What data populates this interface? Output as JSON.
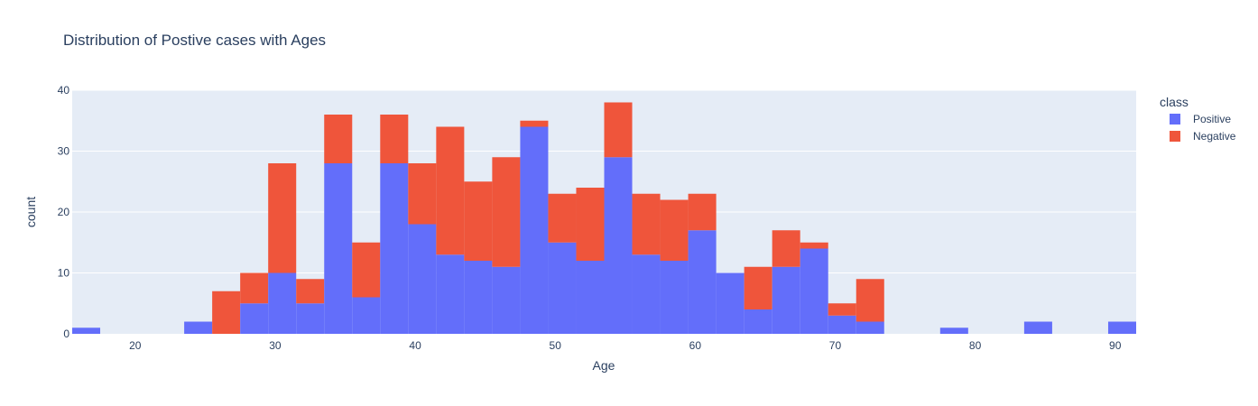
{
  "chart_data": {
    "type": "bar",
    "stacked": true,
    "title": "Distribution of Postive cases with Ages",
    "xlabel": "Age",
    "ylabel": "count",
    "xlim": [
      15.5,
      91.5
    ],
    "ylim": [
      0,
      40
    ],
    "bin_width": 2,
    "x_ticks": [
      20,
      30,
      40,
      50,
      60,
      70,
      80,
      90
    ],
    "y_ticks": [
      0,
      10,
      20,
      30,
      40
    ],
    "grid": true,
    "legend_title": "class",
    "legend_position": "right",
    "bin_starts": [
      15.5,
      17.5,
      19.5,
      21.5,
      23.5,
      25.5,
      27.5,
      29.5,
      31.5,
      33.5,
      35.5,
      37.5,
      39.5,
      41.5,
      43.5,
      45.5,
      47.5,
      49.5,
      51.5,
      53.5,
      55.5,
      57.5,
      59.5,
      61.5,
      63.5,
      65.5,
      67.5,
      69.5,
      71.5,
      73.5,
      75.5,
      77.5,
      79.5,
      81.5,
      83.5,
      85.5,
      87.5,
      89.5
    ],
    "series": [
      {
        "name": "Positive",
        "color": "#636efa",
        "values": [
          1,
          0,
          0,
          0,
          2,
          0,
          5,
          10,
          5,
          28,
          6,
          28,
          18,
          13,
          12,
          11,
          34,
          15,
          12,
          29,
          13,
          12,
          17,
          10,
          4,
          11,
          14,
          3,
          2,
          0,
          0,
          1,
          0,
          0,
          2,
          0,
          0,
          2
        ]
      },
      {
        "name": "Negative",
        "color": "#ef553b",
        "values": [
          0,
          0,
          0,
          0,
          0,
          7,
          5,
          18,
          4,
          8,
          9,
          8,
          10,
          21,
          13,
          18,
          1,
          8,
          12,
          9,
          10,
          10,
          6,
          0,
          7,
          6,
          1,
          2,
          7,
          0,
          0,
          0,
          0,
          0,
          0,
          0,
          0,
          0
        ]
      }
    ]
  }
}
